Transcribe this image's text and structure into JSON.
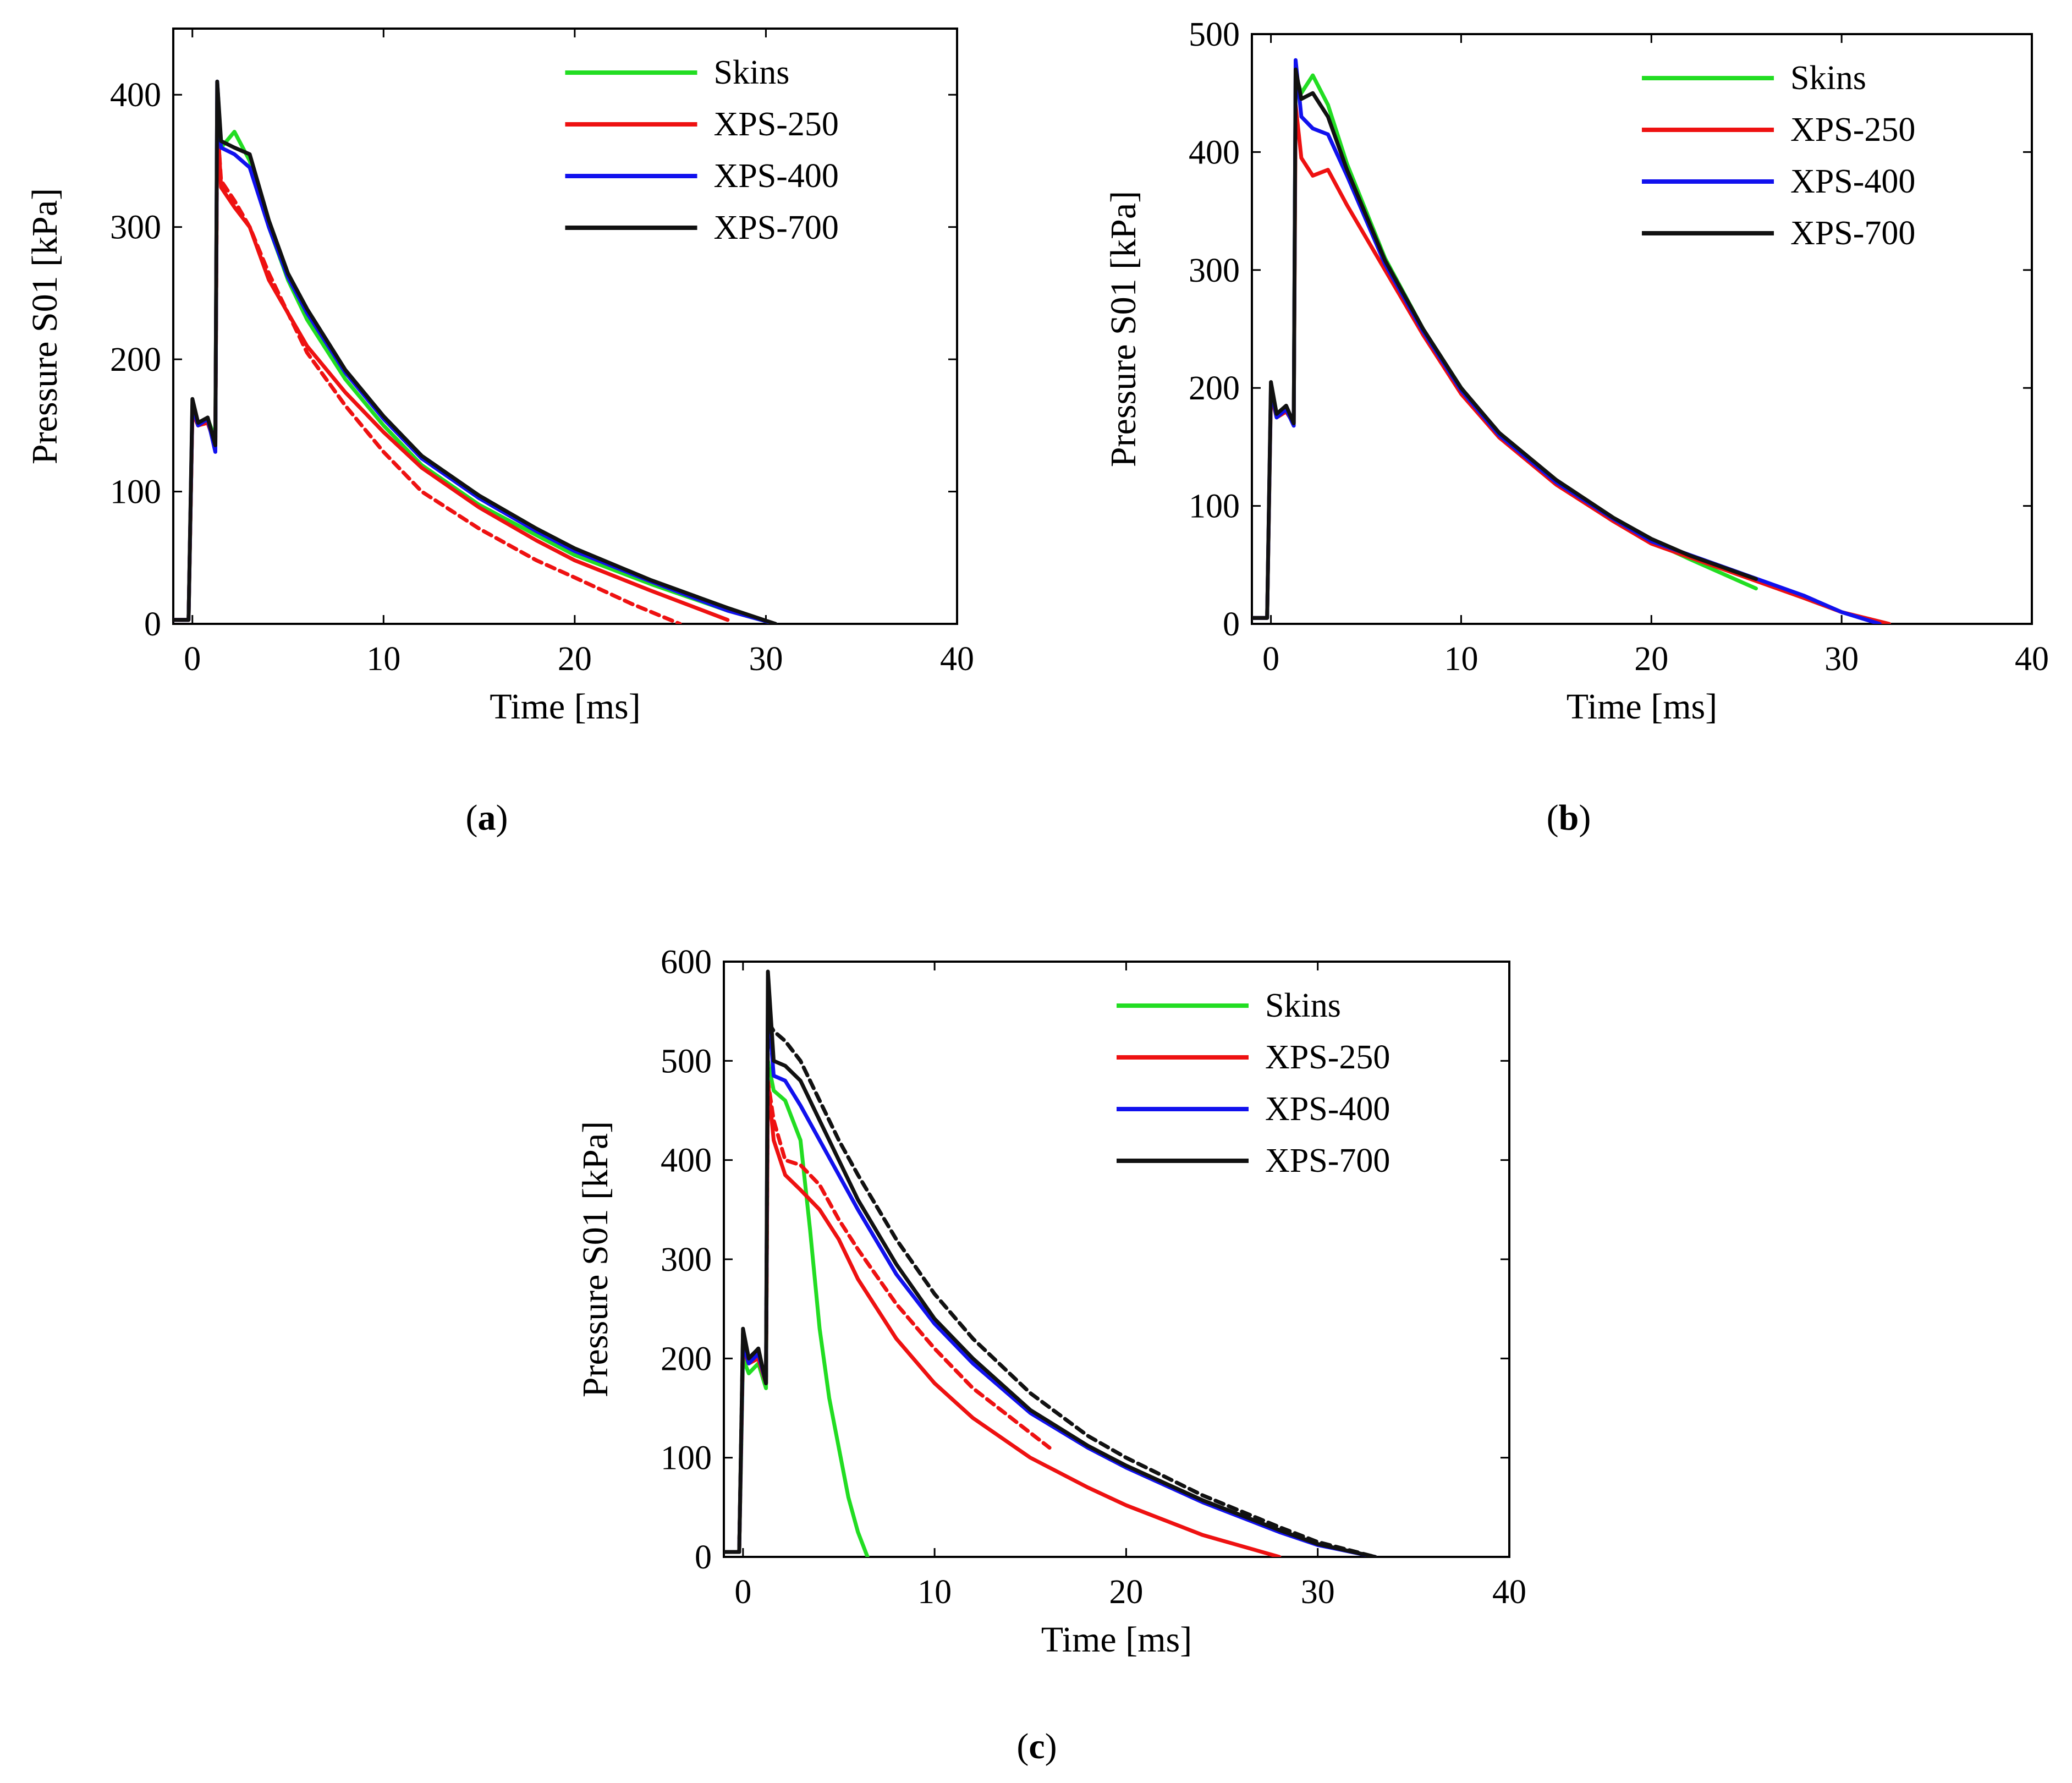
{
  "figure_labels": [
    "(a)",
    "(b)",
    "(c)"
  ],
  "chart_data": [
    {
      "id": "a",
      "type": "line",
      "panel_label": "a",
      "xlabel": "Time [ms]",
      "ylabel": "Pressure S01 [kPa]",
      "xlim": [
        -1,
        40
      ],
      "ylim": [
        0,
        450
      ],
      "xticks": [
        0,
        10,
        20,
        30,
        40
      ],
      "yticks": [
        0,
        100,
        200,
        300,
        400
      ],
      "legend": [
        "Skins",
        "XPS-250",
        "XPS-400",
        "XPS-700"
      ],
      "legend_position": "top-right",
      "series": [
        {
          "name": "Skins",
          "color": "#22dd22",
          "style": "solid",
          "x": [
            -1,
            -0.2,
            0,
            0.3,
            0.8,
            1.2,
            1.3,
            1.5,
            2.2,
            3,
            4,
            5,
            6,
            8,
            10,
            12,
            15,
            18,
            20,
            24,
            28,
            30.5
          ],
          "y": [
            3,
            3,
            160,
            150,
            155,
            140,
            395,
            360,
            372,
            350,
            300,
            260,
            230,
            185,
            150,
            120,
            90,
            67,
            52,
            30,
            10,
            0
          ]
        },
        {
          "name": "XPS-250",
          "color": "#ee1111",
          "style": "solid",
          "x": [
            -1,
            -0.2,
            0,
            0.3,
            0.8,
            1.2,
            1.3,
            1.5,
            2.2,
            3,
            4,
            5,
            6,
            8,
            10,
            12,
            15,
            18,
            20,
            24,
            28
          ],
          "y": [
            3,
            3,
            160,
            150,
            152,
            135,
            385,
            330,
            315,
            300,
            260,
            235,
            210,
            175,
            145,
            118,
            88,
            63,
            48,
            25,
            3
          ]
        },
        {
          "name": "XPS-250 (dashed)",
          "color": "#ee1111",
          "style": "dashed",
          "x": [
            -1,
            -0.2,
            0,
            0.3,
            0.8,
            1.2,
            1.3,
            1.5,
            2.2,
            3,
            4,
            5,
            6,
            8,
            10,
            12,
            15,
            18,
            20,
            23,
            25.5
          ],
          "y": [
            3,
            3,
            160,
            150,
            152,
            135,
            380,
            335,
            320,
            300,
            265,
            235,
            205,
            165,
            130,
            100,
            72,
            48,
            35,
            15,
            0
          ]
        },
        {
          "name": "XPS-400",
          "color": "#1111ee",
          "style": "solid",
          "x": [
            -1,
            -0.2,
            0,
            0.3,
            0.8,
            1.2,
            1.3,
            1.5,
            2.2,
            3,
            4,
            5,
            6,
            8,
            10,
            12,
            15,
            18,
            20,
            24,
            28,
            30.5
          ],
          "y": [
            3,
            3,
            165,
            150,
            155,
            130,
            410,
            360,
            355,
            345,
            300,
            262,
            235,
            190,
            155,
            125,
            95,
            70,
            55,
            32,
            10,
            0
          ]
        },
        {
          "name": "XPS-700",
          "color": "#111111",
          "style": "solid",
          "x": [
            -1,
            -0.2,
            0,
            0.3,
            0.8,
            1.2,
            1.3,
            1.5,
            2.2,
            3,
            4,
            5,
            6,
            8,
            10,
            12,
            15,
            18,
            20,
            24,
            28,
            30.5
          ],
          "y": [
            3,
            3,
            170,
            152,
            156,
            135,
            410,
            365,
            360,
            355,
            305,
            265,
            238,
            192,
            157,
            127,
            97,
            72,
            57,
            33,
            12,
            0
          ]
        }
      ]
    },
    {
      "id": "b",
      "type": "line",
      "panel_label": "b",
      "xlabel": "Time [ms]",
      "ylabel": "Pressure S01 [kPa]",
      "xlim": [
        -1,
        40
      ],
      "ylim": [
        0,
        500
      ],
      "xticks": [
        0,
        10,
        20,
        30,
        40
      ],
      "yticks": [
        0,
        100,
        200,
        300,
        400,
        500
      ],
      "legend": [
        "Skins",
        "XPS-250",
        "XPS-400",
        "XPS-700"
      ],
      "legend_position": "top-right",
      "series": [
        {
          "name": "Skins",
          "color": "#22dd22",
          "style": "solid",
          "x": [
            -1,
            -0.2,
            0,
            0.3,
            0.8,
            1.2,
            1.3,
            1.6,
            2.2,
            3,
            4,
            6,
            8,
            10,
            12,
            15,
            18,
            20,
            22,
            25.5
          ],
          "y": [
            5,
            5,
            195,
            175,
            180,
            170,
            465,
            450,
            465,
            440,
            390,
            310,
            250,
            200,
            160,
            120,
            88,
            70,
            55,
            30
          ]
        },
        {
          "name": "XPS-250",
          "color": "#ee1111",
          "style": "solid",
          "x": [
            -1,
            -0.2,
            0,
            0.3,
            0.8,
            1.2,
            1.3,
            1.6,
            2.2,
            3,
            4,
            6,
            8,
            10,
            12,
            15,
            18,
            20,
            24,
            28,
            30,
            32.5
          ],
          "y": [
            5,
            5,
            195,
            175,
            180,
            170,
            440,
            395,
            380,
            385,
            355,
            300,
            245,
            195,
            158,
            118,
            87,
            68,
            45,
            22,
            10,
            0
          ]
        },
        {
          "name": "XPS-400",
          "color": "#1111ee",
          "style": "solid",
          "x": [
            -1,
            -0.2,
            0,
            0.3,
            0.8,
            1.2,
            1.3,
            1.6,
            2.2,
            3,
            4,
            6,
            8,
            10,
            12,
            15,
            18,
            20,
            24,
            28,
            30,
            32
          ],
          "y": [
            5,
            5,
            200,
            175,
            182,
            168,
            478,
            430,
            420,
            415,
            380,
            305,
            248,
            198,
            160,
            120,
            89,
            70,
            47,
            24,
            10,
            0
          ]
        },
        {
          "name": "XPS-700",
          "color": "#111111",
          "style": "solid",
          "x": [
            -1,
            -0.2,
            0,
            0.3,
            0.8,
            1.2,
            1.3,
            1.6,
            2.2,
            3,
            4,
            6,
            8,
            10,
            12,
            15,
            18,
            20,
            22,
            25.5
          ],
          "y": [
            5,
            5,
            205,
            178,
            185,
            170,
            470,
            445,
            450,
            430,
            385,
            308,
            250,
            200,
            162,
            122,
            90,
            72,
            58,
            38
          ]
        }
      ]
    },
    {
      "id": "c",
      "type": "line",
      "panel_label": "c",
      "xlabel": "Time [ms]",
      "ylabel": "Pressure S01 [kPa]",
      "xlim": [
        -1,
        40
      ],
      "ylim": [
        0,
        600
      ],
      "xticks": [
        0,
        10,
        20,
        30,
        40
      ],
      "yticks": [
        0,
        100,
        200,
        300,
        400,
        500,
        600
      ],
      "legend": [
        "Skins",
        "XPS-250",
        "XPS-400",
        "XPS-700"
      ],
      "legend_position": "top-right",
      "series": [
        {
          "name": "Skins",
          "color": "#22dd22",
          "style": "solid",
          "x": [
            -1,
            -0.2,
            0,
            0.3,
            0.8,
            1.2,
            1.3,
            1.6,
            2.2,
            3,
            3.5,
            4,
            4.5,
            5,
            5.5,
            6,
            6.5
          ],
          "y": [
            5,
            5,
            200,
            185,
            195,
            170,
            500,
            470,
            460,
            420,
            330,
            230,
            160,
            110,
            60,
            25,
            0
          ]
        },
        {
          "name": "XPS-250",
          "color": "#ee1111",
          "style": "solid",
          "x": [
            -1,
            -0.2,
            0,
            0.3,
            0.8,
            1.2,
            1.3,
            1.6,
            2.2,
            3,
            4,
            5,
            6,
            8,
            10,
            12,
            15,
            18,
            20,
            24,
            28
          ],
          "y": [
            5,
            5,
            210,
            195,
            200,
            175,
            480,
            420,
            385,
            370,
            350,
            320,
            280,
            220,
            175,
            140,
            100,
            70,
            52,
            22,
            0
          ]
        },
        {
          "name": "XPS-250 (dashed)",
          "color": "#ee1111",
          "style": "dashed",
          "x": [
            -1,
            -0.2,
            0,
            0.3,
            0.8,
            1.2,
            1.3,
            1.6,
            2.2,
            3,
            4,
            5,
            6,
            8,
            10,
            12,
            15,
            16
          ],
          "y": [
            5,
            5,
            210,
            195,
            200,
            175,
            480,
            440,
            400,
            395,
            375,
            340,
            310,
            255,
            210,
            170,
            125,
            110
          ]
        },
        {
          "name": "XPS-400",
          "color": "#1111ee",
          "style": "solid",
          "x": [
            -1,
            -0.2,
            0,
            0.3,
            0.8,
            1.2,
            1.3,
            1.6,
            2.2,
            3,
            4,
            5,
            6,
            8,
            10,
            12,
            15,
            18,
            20,
            24,
            28,
            30,
            33
          ],
          "y": [
            5,
            5,
            215,
            195,
            205,
            175,
            560,
            485,
            480,
            455,
            420,
            385,
            350,
            285,
            235,
            195,
            145,
            110,
            90,
            55,
            25,
            12,
            0
          ]
        },
        {
          "name": "XPS-700",
          "color": "#111111",
          "style": "solid",
          "x": [
            -1,
            -0.2,
            0,
            0.3,
            0.8,
            1.2,
            1.3,
            1.6,
            2.2,
            3,
            4,
            5,
            6,
            8,
            10,
            12,
            15,
            18,
            20,
            24,
            28,
            30,
            33
          ],
          "y": [
            5,
            5,
            230,
            200,
            210,
            175,
            590,
            500,
            495,
            480,
            440,
            400,
            360,
            295,
            240,
            200,
            148,
            112,
            92,
            57,
            27,
            13,
            0
          ]
        },
        {
          "name": "XPS-700 (dashed)",
          "color": "#111111",
          "style": "dashed",
          "x": [
            -1,
            -0.2,
            0,
            0.3,
            0.8,
            1.2,
            1.3,
            1.6,
            2.2,
            3,
            4,
            5,
            6,
            8,
            10,
            12,
            15,
            18,
            20,
            24,
            28,
            30,
            33
          ],
          "y": [
            5,
            5,
            225,
            200,
            210,
            175,
            540,
            530,
            520,
            500,
            460,
            420,
            385,
            320,
            265,
            220,
            165,
            122,
            100,
            62,
            30,
            15,
            0
          ]
        }
      ]
    }
  ]
}
